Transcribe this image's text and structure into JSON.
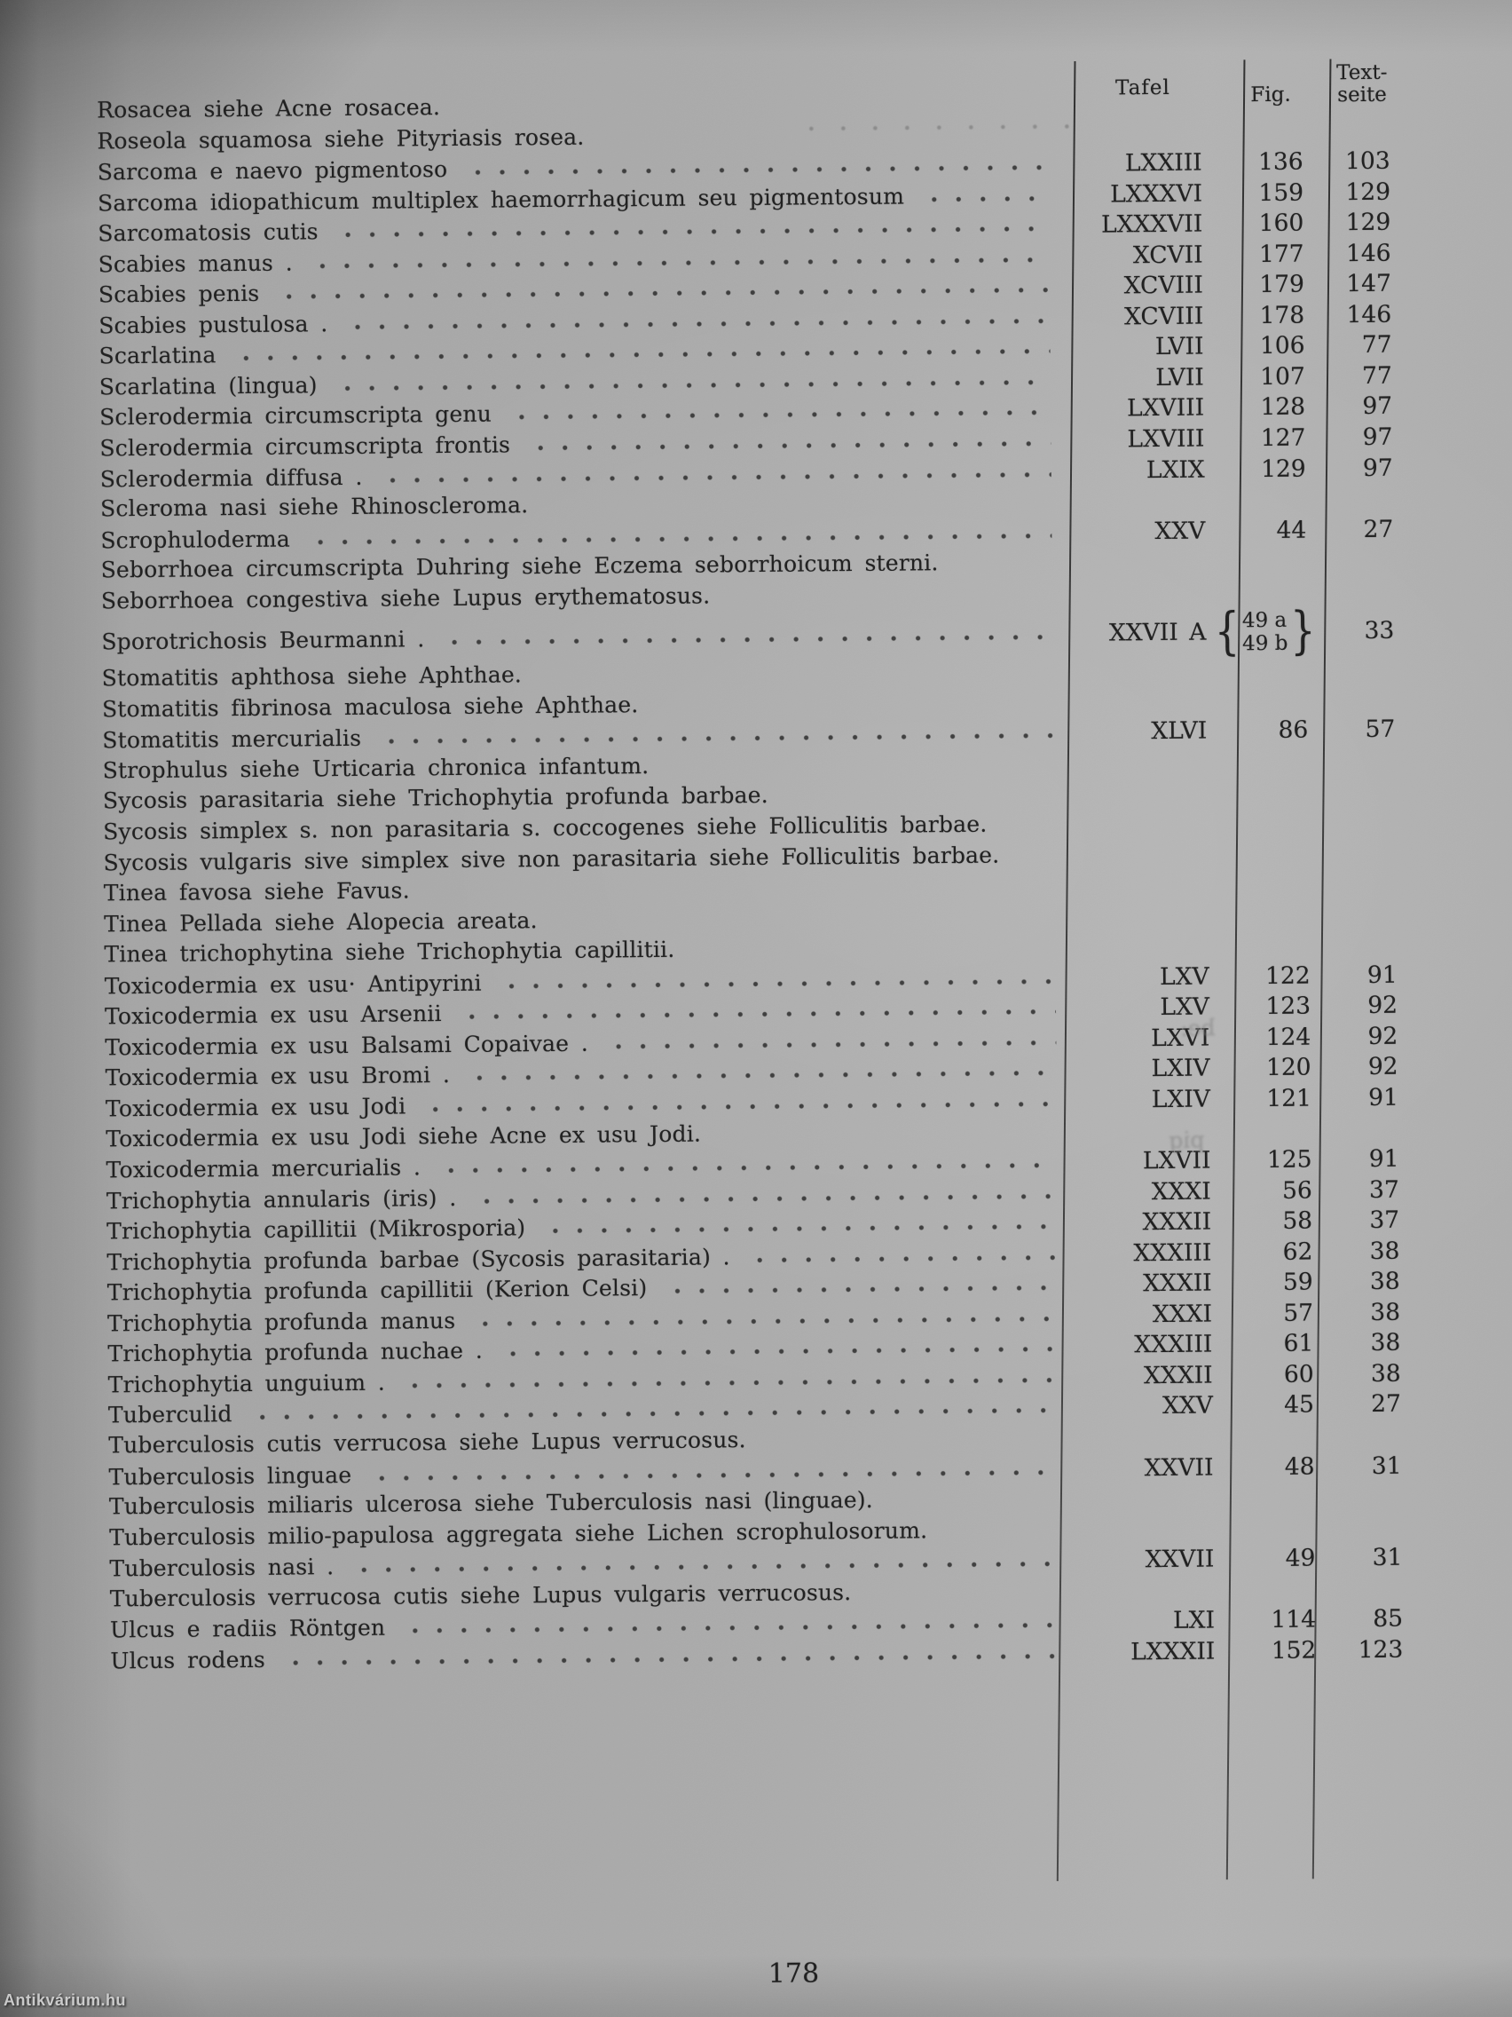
{
  "page": {
    "number": "178",
    "watermark": "Antikvárium.hu"
  },
  "table": {
    "headers": {
      "tafel": "Tafel",
      "fig": "Fig.",
      "textseite_line1": "Text-",
      "textseite_line2": "seite"
    },
    "brace_open": "{",
    "brace_close": "}",
    "rows": [
      {
        "entry": "Rosacea siehe Acne rosacea."
      },
      {
        "entry": "Roseola squamosa siehe Pityriasis rosea."
      },
      {
        "entry": "Sarcoma e naevo pigmentoso",
        "tafel": "LXXIII",
        "fig": "136",
        "seite": "103"
      },
      {
        "entry": "Sarcoma idiopathicum multiplex haemorrhagicum seu pigmentosum",
        "tafel": "LXXXVI",
        "fig": "159",
        "seite": "129"
      },
      {
        "entry": "Sarcomatosis cutis",
        "tafel": "LXXXVII",
        "fig": "160",
        "seite": "129"
      },
      {
        "entry": "Scabies manus .",
        "tafel": "XCVII",
        "fig": "177",
        "seite": "146"
      },
      {
        "entry": "Scabies penis",
        "tafel": "XCVIII",
        "fig": "179",
        "seite": "147"
      },
      {
        "entry": "Scabies pustulosa .",
        "tafel": "XCVIII",
        "fig": "178",
        "seite": "146"
      },
      {
        "entry": "Scarlatina",
        "tafel": "LVII",
        "fig": "106",
        "seite": "77"
      },
      {
        "entry": "Scarlatina (lingua)",
        "tafel": "LVII",
        "fig": "107",
        "seite": "77"
      },
      {
        "entry": "Sclerodermia circumscripta genu",
        "tafel": "LXVIII",
        "fig": "128",
        "seite": "97"
      },
      {
        "entry": "Sclerodermia circumscripta frontis",
        "tafel": "LXVIII",
        "fig": "127",
        "seite": "97"
      },
      {
        "entry": "Sclerodermia diffusa .",
        "tafel": "LXIX",
        "fig": "129",
        "seite": "97"
      },
      {
        "entry": "Scleroma nasi siehe Rhinoscleroma."
      },
      {
        "entry": "Scrophuloderma",
        "tafel": "XXV",
        "fig": "44",
        "seite": "27"
      },
      {
        "entry": "Seborrhoea circumscripta Duhring siehe Eczema seborrhoicum sterni."
      },
      {
        "entry": "Seborrhoea congestiva siehe Lupus erythematosus."
      },
      {
        "entry": "Sporotrichosis Beurmanni .",
        "tafel": "XXVII A",
        "fig": [
          "49 a",
          "49 b"
        ],
        "seite": "33"
      },
      {
        "entry": "Stomatitis aphthosa siehe Aphthae."
      },
      {
        "entry": "Stomatitis fibrinosa maculosa siehe Aphthae."
      },
      {
        "entry": "Stomatitis mercurialis",
        "tafel": "XLVI",
        "fig": "86",
        "seite": "57"
      },
      {
        "entry": "Strophulus siehe Urticaria chronica infantum."
      },
      {
        "entry": "Sycosis parasitaria siehe Trichophytia profunda barbae."
      },
      {
        "entry": "Sycosis simplex s. non parasitaria s. coccogenes siehe Folliculitis barbae."
      },
      {
        "entry": "Sycosis vulgaris sive simplex sive non parasitaria siehe Folliculitis barbae."
      },
      {
        "entry": "Tinea favosa siehe Favus."
      },
      {
        "entry": "Tinea Pellada siehe Alopecia areata."
      },
      {
        "entry": "Tinea trichophytina siehe Trichophytia capillitii."
      },
      {
        "entry": "Toxicodermia ex usu· Antipyrini",
        "tafel": "LXV",
        "fig": "122",
        "seite": "91"
      },
      {
        "entry": "Toxicodermia ex usu Arsenii",
        "tafel": "LXV",
        "fig": "123",
        "seite": "92"
      },
      {
        "entry": "Toxicodermia ex usu Balsami Copaivae .",
        "tafel": "LXVI",
        "fig": "124",
        "seite": "92"
      },
      {
        "entry": "Toxicodermia ex usu Bromi .",
        "tafel": "LXIV",
        "fig": "120",
        "seite": "92"
      },
      {
        "entry": "Toxicodermia ex usu Jodi",
        "tafel": "LXIV",
        "fig": "121",
        "seite": "91"
      },
      {
        "entry": "Toxicodermia ex usu Jodi siehe Acne ex usu Jodi."
      },
      {
        "entry": "Toxicodermia mercurialis .",
        "tafel": "LXVII",
        "fig": "125",
        "seite": "91"
      },
      {
        "entry": "Trichophytia annularis (iris) .",
        "tafel": "XXXI",
        "fig": "56",
        "seite": "37"
      },
      {
        "entry": "Trichophytia capillitii (Mikrosporia)",
        "tafel": "XXXII",
        "fig": "58",
        "seite": "37"
      },
      {
        "entry": "Trichophytia profunda barbae (Sycosis parasitaria) .",
        "tafel": "XXXIII",
        "fig": "62",
        "seite": "38"
      },
      {
        "entry": "Trichophytia profunda capillitii (Kerion Celsi)",
        "tafel": "XXXII",
        "fig": "59",
        "seite": "38"
      },
      {
        "entry": "Trichophytia profunda manus",
        "tafel": "XXXI",
        "fig": "57",
        "seite": "38"
      },
      {
        "entry": "Trichophytia profunda nuchae .",
        "tafel": "XXXIII",
        "fig": "61",
        "seite": "38"
      },
      {
        "entry": "Trichophytia unguium .",
        "tafel": "XXXII",
        "fig": "60",
        "seite": "38"
      },
      {
        "entry": "Tuberculid",
        "tafel": "XXV",
        "fig": "45",
        "seite": "27"
      },
      {
        "entry": "Tuberculosis cutis verrucosa siehe Lupus verrucosus."
      },
      {
        "entry": "Tuberculosis linguae",
        "tafel": "XXVII",
        "fig": "48",
        "seite": "31"
      },
      {
        "entry": "Tuberculosis miliaris ulcerosa siehe Tuberculosis nasi (linguae)."
      },
      {
        "entry": "Tuberculosis milio-papulosa aggregata siehe Lichen scrophulosorum."
      },
      {
        "entry": "Tuberculosis nasi .",
        "tafel": "XXVII",
        "fig": "49",
        "seite": "31"
      },
      {
        "entry": "Tuberculosis verrucosa cutis siehe Lupus vulgaris verrucosus."
      },
      {
        "entry": "Ulcus e radiis Röntgen",
        "tafel": "LXI",
        "fig": "114",
        "seite": "85"
      },
      {
        "entry": "Ulcus rodens",
        "tafel": "LXXXII",
        "fig": "152",
        "seite": "123"
      }
    ]
  },
  "artifacts": {
    "bleed_marks": [
      "be:",
      "pig"
    ]
  }
}
